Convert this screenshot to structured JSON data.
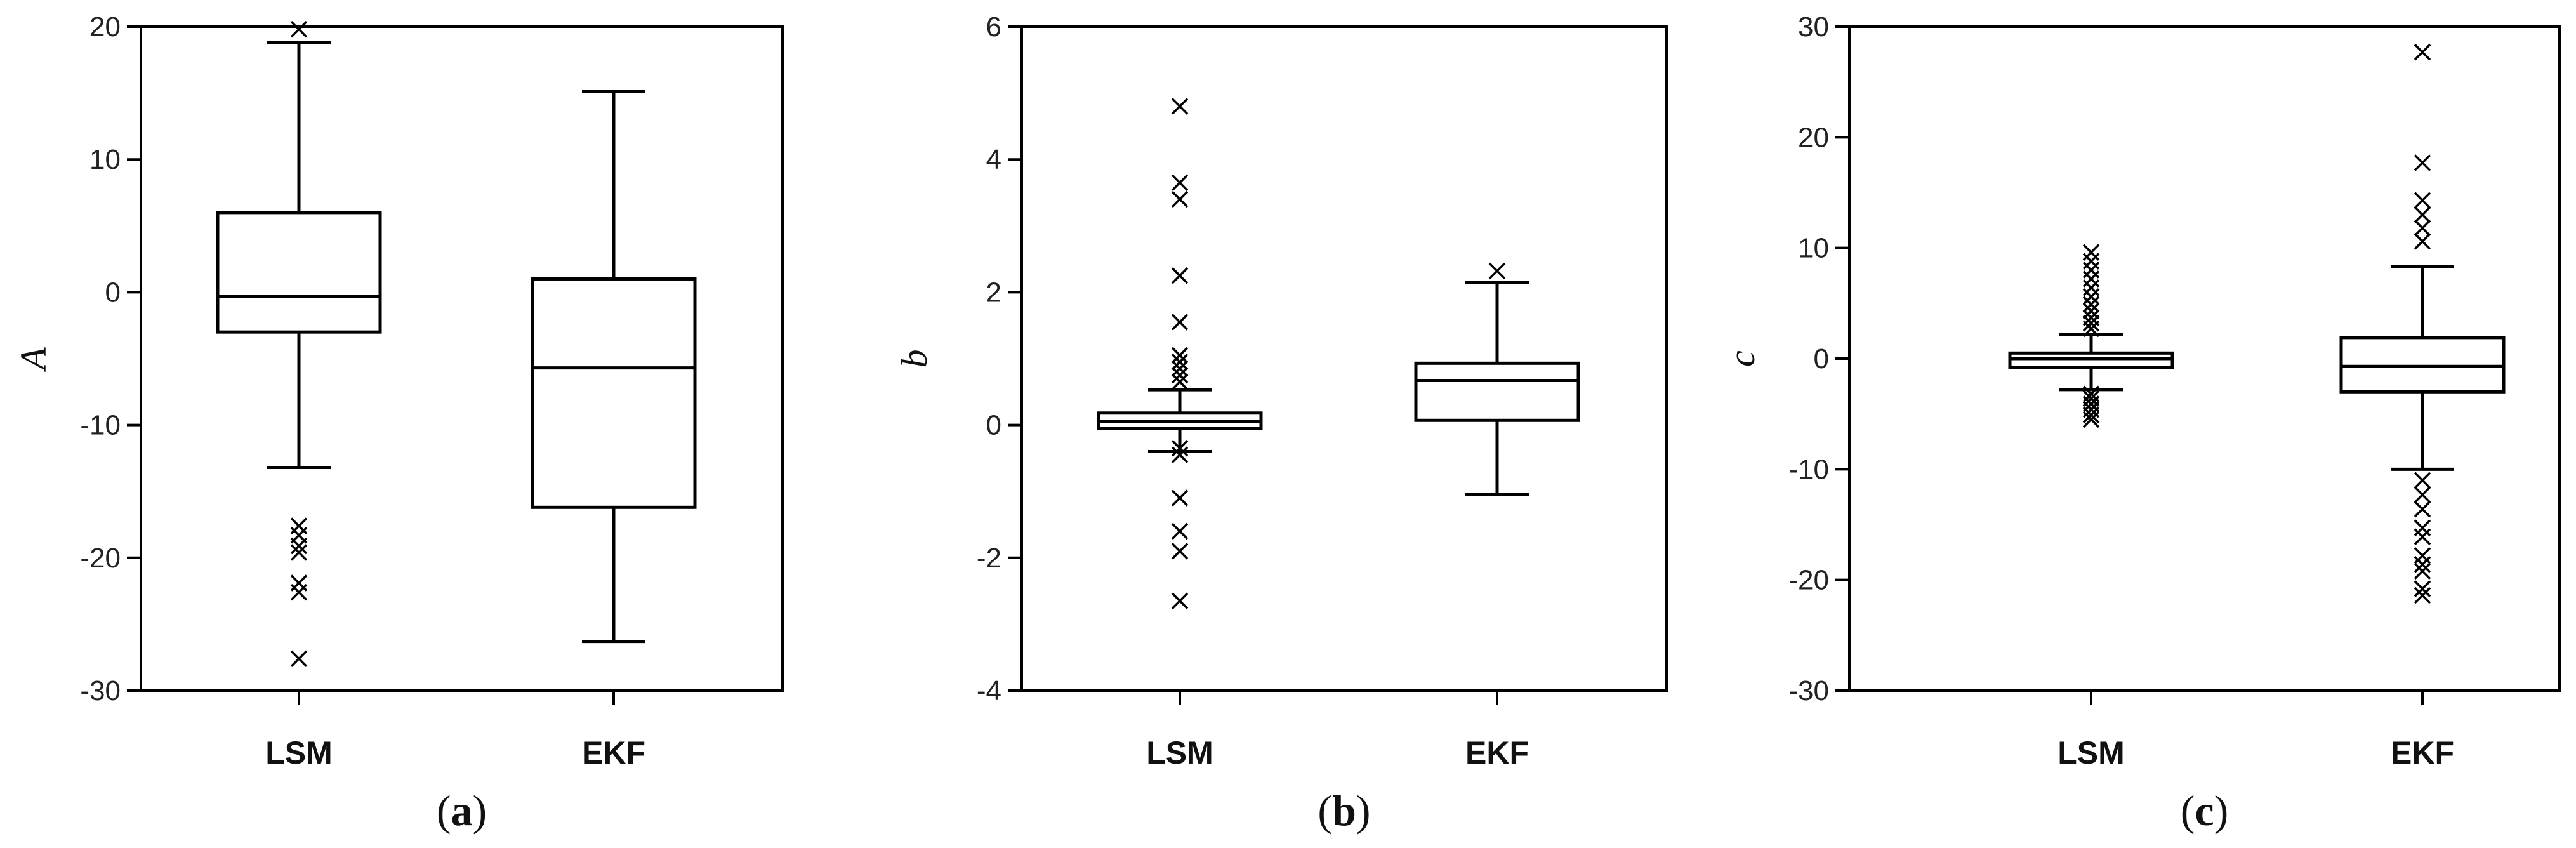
{
  "chart_data": [
    {
      "type": "box",
      "panel_label": "a",
      "xlabel": "",
      "ylabel": "A",
      "ylim": [
        -30,
        20
      ],
      "yticks": [
        -30,
        -20,
        -10,
        0,
        10,
        20
      ],
      "tick_labels": [
        "-30",
        "-20",
        "-10",
        "0",
        "10",
        "20"
      ],
      "categories": [
        "LSM",
        "EKF"
      ],
      "boxes": [
        {
          "category": "LSM",
          "whisker_low": -13.2,
          "q1": -3,
          "median": -0.3,
          "q3": 6,
          "whisker_high": 18.8,
          "outliers": [
            19.8,
            -17.6,
            -18.3,
            -19.1,
            -19.6,
            -21.9,
            -22.6,
            -27.6
          ]
        },
        {
          "category": "EKF",
          "whisker_low": -26.3,
          "q1": -16.2,
          "median": -5.7,
          "q3": 1,
          "whisker_high": 15.1,
          "outliers": []
        }
      ]
    },
    {
      "type": "box",
      "panel_label": "b",
      "xlabel": "",
      "ylabel": "b",
      "ylim": [
        -4,
        6
      ],
      "yticks": [
        -4,
        -2,
        0,
        2,
        4,
        6
      ],
      "tick_labels": [
        "-4",
        "-2",
        "0",
        "2",
        "4",
        "6"
      ],
      "categories": [
        "LSM",
        "EKF"
      ],
      "boxes": [
        {
          "category": "LSM",
          "whisker_low": -0.4,
          "q1": -0.05,
          "median": 0.05,
          "q3": 0.18,
          "whisker_high": 0.53,
          "outliers": [
            4.8,
            3.65,
            3.4,
            2.25,
            1.55,
            1.05,
            0.95,
            0.85,
            0.75,
            0.65,
            -0.35,
            -0.45,
            -1.1,
            -1.6,
            -1.9,
            -2.65
          ]
        },
        {
          "category": "EKF",
          "whisker_low": -1.05,
          "q1": 0.07,
          "median": 0.67,
          "q3": 0.93,
          "whisker_high": 2.15,
          "outliers": [
            2.32
          ]
        }
      ]
    },
    {
      "type": "box",
      "panel_label": "c",
      "xlabel": "",
      "ylabel": "c",
      "ylim": [
        -30,
        30
      ],
      "yticks": [
        -30,
        -20,
        -10,
        0,
        10,
        20,
        30
      ],
      "tick_labels": [
        "-30",
        "-20",
        "-10",
        "0",
        "10",
        "20",
        "30"
      ],
      "categories": [
        "LSM",
        "EKF"
      ],
      "boxes": [
        {
          "category": "LSM",
          "whisker_low": -2.8,
          "q1": -0.8,
          "median": 0,
          "q3": 0.5,
          "whisker_high": 2.2,
          "outliers": [
            9.6,
            8.8,
            8,
            7.2,
            6.4,
            5.6,
            4.9,
            4.3,
            3.7,
            3.2,
            2.7,
            -3.2,
            -3.6,
            -4.1,
            -4.6,
            -5.1,
            -5.5
          ]
        },
        {
          "category": "EKF",
          "whisker_low": -10,
          "q1": -3,
          "median": -0.7,
          "q3": 1.9,
          "whisker_high": 8.3,
          "outliers": [
            27.7,
            17.7,
            14.3,
            13,
            11.8,
            10.6,
            -11,
            -12.3,
            -13.6,
            -15.3,
            -16.1,
            -17.8,
            -18.6,
            -19.2,
            -20.8,
            -21.4
          ]
        }
      ]
    }
  ]
}
